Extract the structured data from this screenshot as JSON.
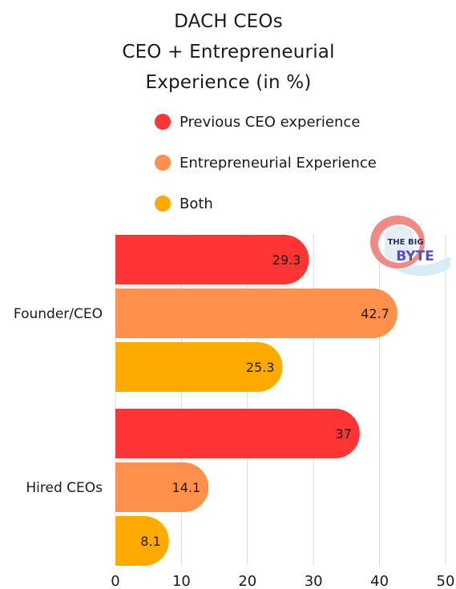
{
  "title_lines": [
    "DACH CEOs",
    "CEO + Entrepreneurial",
    "Experience (in %)"
  ],
  "logo_text": [
    "THE BIG",
    "BYTE"
  ],
  "colors": {
    "previous_ceo": "#ff3434",
    "entrepreneurial": "#ff914d",
    "both": "#ffaa00",
    "grid": "#d9d9d9",
    "text": "#1a1a1a"
  },
  "chart_data": {
    "type": "bar",
    "orientation": "horizontal",
    "title": "DACH CEOs CEO + Entrepreneurial Experience (in %)",
    "categories": [
      "Founder/CEO",
      "Hired CEOs"
    ],
    "series": [
      {
        "name": "Previous CEO experience",
        "values": [
          29.3,
          37
        ],
        "labels": [
          "29.3",
          "37"
        ]
      },
      {
        "name": "Entrepreneurial Experience",
        "values": [
          42.7,
          14.1
        ],
        "labels": [
          "42.7",
          "14.1"
        ]
      },
      {
        "name": "Both",
        "values": [
          25.3,
          8.1
        ],
        "labels": [
          "25.3",
          "8.1"
        ]
      }
    ],
    "xlim": [
      0,
      50
    ],
    "xticks": [
      0,
      10,
      20,
      30,
      40,
      50
    ],
    "legend": "top",
    "grid": true
  }
}
